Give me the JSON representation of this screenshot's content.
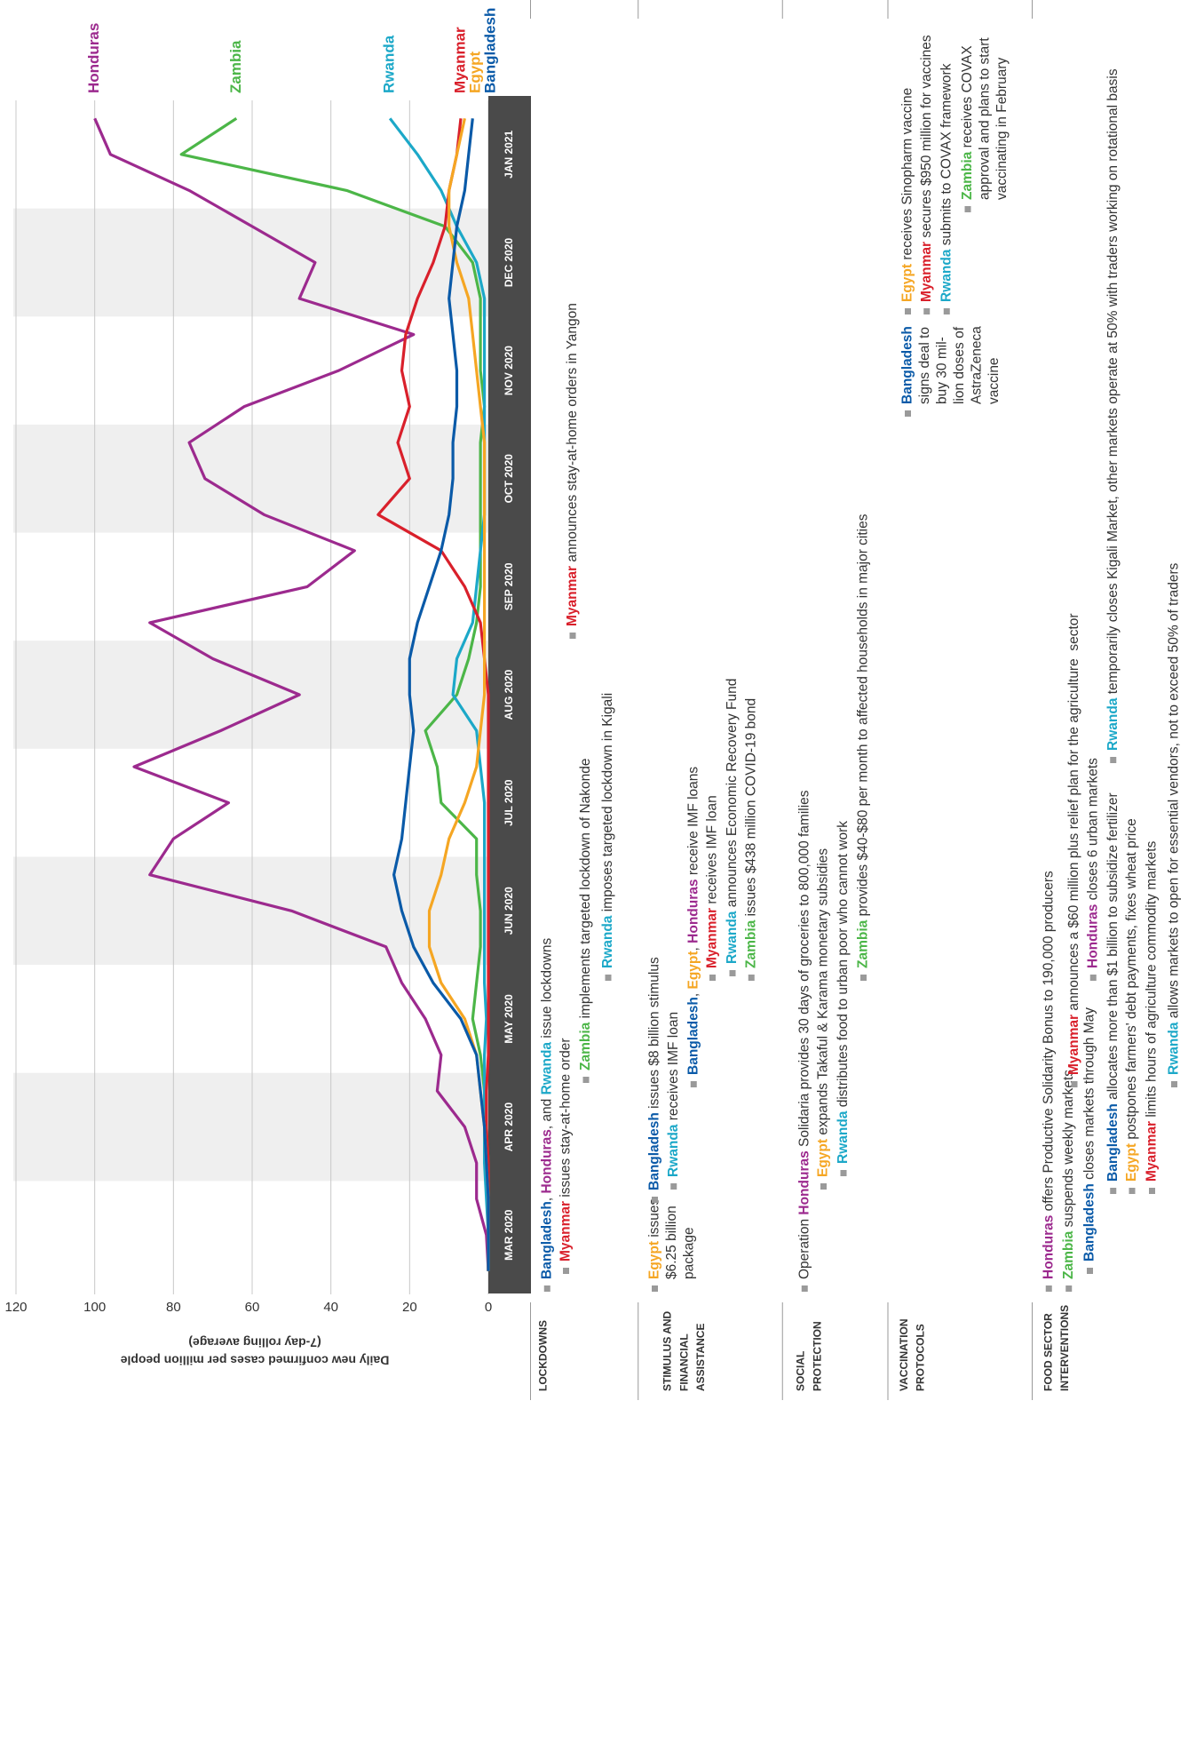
{
  "chart_data": {
    "type": "line",
    "ylabel": "Daily new confirmed cases per million people",
    "ylabel_note": "(7-day rolling average)",
    "categories": [
      null,
      "MAR 2020",
      null,
      null,
      "APR 2020",
      null,
      null,
      "MAY 2020",
      null,
      null,
      "JUN 2020",
      null,
      null,
      "JUL 2020",
      null,
      null,
      "AUG 2020",
      null,
      null,
      "SEP 2020",
      null,
      null,
      "OCT 2020",
      null,
      null,
      "NOV 2020",
      null,
      null,
      "DEC 2020",
      null,
      null,
      "JAN 2021",
      null
    ],
    "ylim": [
      0,
      120
    ],
    "yticks": [
      0,
      20,
      40,
      60,
      80,
      100,
      120
    ],
    "grid": true,
    "series": [
      {
        "name": "Honduras",
        "color": "#9c2a8e",
        "values": [
          0,
          0.5,
          3,
          3,
          6,
          13,
          12,
          16,
          22,
          26,
          50,
          86,
          80,
          66,
          90,
          68,
          48,
          70,
          86,
          46,
          34,
          57,
          72,
          76,
          62,
          38,
          19,
          48,
          44,
          60,
          76,
          96,
          100
        ]
      },
      {
        "name": "Zambia",
        "color": "#4cb648",
        "values": [
          0,
          0,
          0,
          0,
          0.5,
          1,
          2,
          4,
          3,
          2,
          2,
          3,
          3,
          12,
          13,
          16,
          8,
          5,
          3,
          2,
          2,
          2,
          2,
          2,
          1,
          2,
          2,
          2,
          4,
          11,
          36,
          78,
          64
        ]
      },
      {
        "name": "Rwanda",
        "color": "#1ca8c8",
        "values": [
          0,
          0,
          0.5,
          1,
          1,
          1,
          1,
          0.5,
          1,
          1,
          1,
          1,
          1,
          1,
          2,
          3,
          9,
          8,
          4,
          3,
          2,
          1,
          1,
          1,
          1,
          1,
          1,
          1,
          3,
          8,
          12,
          18,
          25
        ]
      },
      {
        "name": "Myanmar",
        "color": "#d9202b",
        "values": [
          0,
          0,
          0,
          0,
          0.5,
          0.5,
          0,
          0,
          0,
          0,
          0,
          0,
          0,
          0,
          0,
          0,
          0,
          1,
          2,
          6,
          12,
          28,
          20,
          23,
          20,
          22,
          21,
          18,
          14,
          11,
          10,
          8,
          7
        ]
      },
      {
        "name": "Egypt",
        "color": "#f5a623",
        "values": [
          0,
          0,
          0,
          0.5,
          1,
          2,
          3,
          6,
          12,
          15,
          15,
          12,
          10,
          6,
          3,
          2,
          1,
          1,
          1,
          1,
          1,
          1,
          1,
          1,
          2,
          3,
          4,
          5,
          8,
          10,
          10,
          8,
          6
        ]
      },
      {
        "name": "Bangladesh",
        "color": "#0a5aa8",
        "values": [
          0,
          0,
          0,
          0.5,
          1,
          2,
          3,
          7,
          14,
          19,
          22,
          24,
          22,
          21,
          20,
          19,
          20,
          20,
          18,
          15,
          12,
          10,
          9,
          9,
          8,
          8,
          9,
          10,
          9,
          8,
          6,
          5,
          4
        ]
      }
    ]
  },
  "policies": [
    {
      "label": [
        "LOCKDOWNS"
      ],
      "items": [
        {
          "lines": [
            [
              "Bangladesh",
              ", ",
              "Honduras",
              ", and ",
              "Rwanda",
              " issue lockdowns"
            ]
          ]
        },
        {
          "lines": [
            [
              "Myanmar",
              " issues stay-at-home order"
            ]
          ]
        },
        {
          "lines": [
            [
              "Zambia",
              " implements targeted lockdown of Nakonde"
            ]
          ]
        },
        {
          "lines": [
            [
              "Rwanda",
              " imposes targeted lockdown in Kigali"
            ]
          ]
        },
        {
          "lines": [
            [
              "Myanmar",
              " announces stay-at-home orders in Yangon"
            ]
          ]
        }
      ]
    },
    {
      "label": [
        "STIMULUS AND",
        "FINANCIAL",
        "ASSISTANCE"
      ],
      "items": [
        {
          "lines": [
            [
              "Egypt",
              " issues"
            ],
            [
              "$6.25 billion"
            ],
            [
              "package"
            ]
          ]
        },
        {
          "lines": [
            [
              "Bangladesh",
              " issues $8 billion stimulus"
            ]
          ]
        },
        {
          "lines": [
            [
              "Rwanda",
              " receives IMF loan"
            ]
          ]
        },
        {
          "lines": [
            [
              "Bangladesh",
              ", ",
              "Egypt",
              ", ",
              "Honduras",
              " receive IMF loans"
            ]
          ]
        },
        {
          "lines": [
            [
              "Myanmar",
              " receives IMF loan"
            ]
          ]
        },
        {
          "lines": [
            [
              "Rwanda",
              " announces Economic Recovery Fund"
            ]
          ]
        },
        {
          "lines": [
            [
              "Zambia",
              " issues $438 million COVID-19 bond"
            ]
          ]
        }
      ]
    },
    {
      "label": [
        "SOCIAL",
        "PROTECTION"
      ],
      "items": [
        {
          "lines": [
            [
              "Operation ",
              "Honduras",
              " Solidaria provides 30 days of groceries to 800,000 families"
            ]
          ]
        },
        {
          "lines": [
            [
              "Egypt",
              " expands Takaful & Karama monetary subsidies"
            ]
          ]
        },
        {
          "lines": [
            [
              "Rwanda",
              " distributes food to urban poor who cannot work"
            ]
          ]
        },
        {
          "lines": [
            [
              "Zambia",
              " provides $40-$80 per month to affected households in major cities"
            ]
          ]
        }
      ]
    },
    {
      "label": [
        "VACCINATION",
        "PROTOCOLS"
      ],
      "items": [
        {
          "lines": [
            [
              "Bangladesh"
            ],
            [
              "signs deal to"
            ],
            [
              "buy 30 mil-"
            ],
            [
              "lion doses of"
            ],
            [
              "AstraZeneca"
            ],
            [
              "vaccine"
            ]
          ]
        },
        {
          "lines": [
            [
              "Egypt",
              " receives Sinopharm vaccine"
            ]
          ]
        },
        {
          "lines": [
            [
              "Myanmar",
              " secures $950 million for vaccines"
            ]
          ]
        },
        {
          "lines": [
            [
              "Rwanda",
              " submits to COVAX framework"
            ]
          ]
        },
        {
          "lines": [
            [
              "Zambia",
              " receives COVAX"
            ],
            [
              "approval and plans to start"
            ],
            [
              "vaccinating in February"
            ]
          ]
        }
      ]
    },
    {
      "label": [
        "FOOD SECTOR",
        "INTERVENTIONS"
      ],
      "items": [
        {
          "lines": [
            [
              "Honduras",
              " offers Productive Solidarity Bonus to 190,000 producers"
            ]
          ]
        },
        {
          "lines": [
            [
              "Zambia",
              " suspends weekly markets"
            ]
          ]
        },
        {
          "lines": [
            [
              "Bangladesh",
              " closes markets through May"
            ]
          ]
        },
        {
          "lines": [
            [
              "Myanmar",
              " announces a $60 million plus relief plan for the agriculture  sector"
            ]
          ]
        },
        {
          "lines": [
            [
              "Honduras",
              " closes 6 urban markets"
            ]
          ]
        },
        {
          "lines": [
            [
              "Bangladesh",
              " allocates more than $1 billion to subsidize fertilizer"
            ]
          ]
        },
        {
          "lines": [
            [
              "Egypt",
              " postpones farmers' debt payments, fixes wheat price"
            ]
          ]
        },
        {
          "lines": [
            [
              "Myanmar",
              " limits hours of agriculture commodity markets"
            ]
          ]
        },
        {
          "lines": [
            [
              "Rwanda",
              " allows markets to open for essential vendors, not to exceed 50% of traders"
            ]
          ]
        },
        {
          "lines": [
            [
              "Rwanda",
              " temporarily closes Kigali Market, other markets operate at 50% with traders working on rotational basis"
            ]
          ]
        }
      ]
    }
  ]
}
